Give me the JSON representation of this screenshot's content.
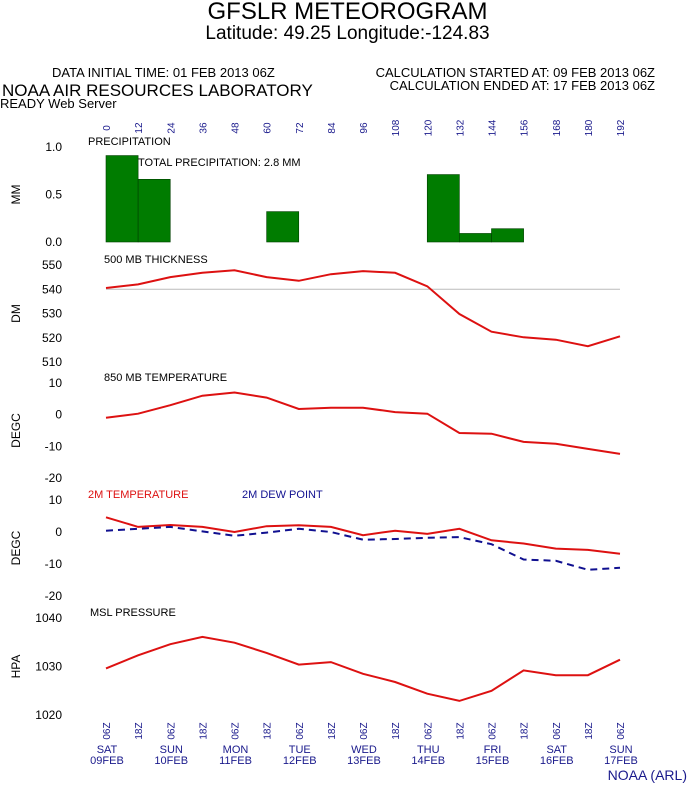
{
  "header": {
    "title": "GFSLR METEOROGRAM",
    "subtitle": "Latitude: 49.25 Longitude:-124.83",
    "data_initial_time": "DATA INITIAL TIME: 01 FEB 2013 06Z",
    "calc_started": "CALCULATION STARTED AT: 09 FEB 2013 06Z",
    "calc_ended": "CALCULATION ENDED AT: 17 FEB 2013 06Z",
    "lab": "NOAA AIR RESOURCES LABORATORY",
    "server": "READY Web Server"
  },
  "credit": "NOAA (ARL)",
  "colors": {
    "series": "#dd1111",
    "dew": "#101090",
    "bar": "#007c00",
    "axis_text": "#1a1a8c"
  },
  "chart_data": [
    {
      "type": "bar",
      "title": "PRECIPITATION",
      "annotation": "TOTAL PRECIPITATION:   2.8 MM",
      "ylabel": "MM",
      "ylim": [
        0,
        1
      ],
      "yticks": [
        "0.0",
        "0.5",
        "1.0"
      ],
      "top_axis_ticks": [
        "0",
        "12",
        "24",
        "36",
        "48",
        "60",
        "72",
        "84",
        "96",
        "108",
        "120",
        "132",
        "144",
        "156",
        "168",
        "180",
        "192"
      ],
      "x": [
        6,
        18,
        30,
        42,
        54,
        66,
        78,
        90,
        102,
        114,
        126,
        138,
        150,
        162,
        174,
        186
      ],
      "values": [
        0.91,
        0.66,
        0,
        0,
        0,
        0.32,
        0,
        0,
        0,
        0,
        0.71,
        0.09,
        0.14,
        0,
        0,
        0
      ]
    },
    {
      "type": "line",
      "title": "500 MB  THICKNESS",
      "ylabel": "DM",
      "ylim": [
        510,
        550
      ],
      "yticks": [
        "510",
        "520",
        "530",
        "540",
        "550"
      ],
      "x": [
        0,
        12,
        24,
        36,
        48,
        60,
        72,
        84,
        96,
        108,
        120,
        132,
        144,
        156,
        168,
        180,
        192
      ],
      "series": [
        {
          "values": [
            540.5,
            542.0,
            545.0,
            546.8,
            547.8,
            545.0,
            543.5,
            546.2,
            547.5,
            546.8,
            541.2,
            529.8,
            522.5,
            520.2,
            519.2,
            516.5,
            520.6
          ]
        }
      ]
    },
    {
      "type": "line",
      "title": "850 MB  TEMPERATURE",
      "ylabel": "DEGC",
      "ylim": [
        -20,
        10
      ],
      "yticks": [
        "-20",
        "-10",
        "0",
        "10"
      ],
      "x": [
        0,
        12,
        24,
        36,
        48,
        60,
        72,
        84,
        96,
        108,
        120,
        132,
        144,
        156,
        168,
        180,
        192
      ],
      "series": [
        {
          "values": [
            -1.0,
            0.3,
            3.0,
            6.0,
            7.0,
            5.4,
            1.8,
            2.2,
            2.2,
            0.8,
            0.3,
            -5.8,
            -6.0,
            -8.6,
            -9.2,
            -10.8,
            -12.4
          ]
        }
      ]
    },
    {
      "type": "line",
      "legend": [
        "2M TEMPERATURE",
        "2M  DEW POINT"
      ],
      "ylabel": "DEGC",
      "ylim": [
        -20,
        10
      ],
      "yticks": [
        "-20",
        "-10",
        "0",
        "10"
      ],
      "x": [
        0,
        12,
        24,
        36,
        48,
        60,
        72,
        84,
        96,
        108,
        120,
        132,
        144,
        156,
        168,
        180,
        192
      ],
      "series": [
        {
          "name": "2M TEMPERATURE",
          "values": [
            4.6,
            1.6,
            2.2,
            1.6,
            0.0,
            1.8,
            2.1,
            1.6,
            -1.0,
            0.4,
            -0.6,
            1.0,
            -2.6,
            -3.6,
            -5.2,
            -5.6,
            -6.8
          ]
        },
        {
          "name": "2M  DEW POINT",
          "values": [
            0.4,
            1.0,
            1.6,
            0.2,
            -1.2,
            -0.2,
            1.0,
            0.0,
            -2.4,
            -2.2,
            -1.8,
            -1.6,
            -3.8,
            -8.6,
            -9.0,
            -11.8,
            -11.2
          ]
        }
      ]
    },
    {
      "type": "line",
      "title": "MSL PRESSURE",
      "ylabel": "HPA",
      "ylim": [
        1020,
        1040
      ],
      "yticks": [
        "1020",
        "1030",
        "1040"
      ],
      "x": [
        0,
        12,
        24,
        36,
        48,
        60,
        72,
        84,
        96,
        108,
        120,
        132,
        144,
        156,
        168,
        180,
        192
      ],
      "series": [
        {
          "values": [
            1029.6,
            1032.3,
            1034.6,
            1036.1,
            1034.9,
            1032.8,
            1030.4,
            1030.9,
            1028.5,
            1026.8,
            1024.4,
            1022.9,
            1025.0,
            1029.2,
            1028.2,
            1028.2,
            1031.4
          ]
        }
      ],
      "bottom_axis_ticks": [
        "06Z",
        "18Z",
        "06Z",
        "18Z",
        "06Z",
        "18Z",
        "06Z",
        "18Z",
        "06Z",
        "18Z",
        "06Z",
        "18Z",
        "06Z",
        "18Z",
        "06Z",
        "18Z",
        "06Z"
      ],
      "day_labels": [
        [
          "SAT",
          "09FEB"
        ],
        [
          "SUN",
          "10FEB"
        ],
        [
          "MON",
          "11FEB"
        ],
        [
          "TUE",
          "12FEB"
        ],
        [
          "WED",
          "13FEB"
        ],
        [
          "THU",
          "14FEB"
        ],
        [
          "FRI",
          "15FEB"
        ],
        [
          "SAT",
          "16FEB"
        ],
        [
          "SUN",
          "17FEB"
        ]
      ]
    }
  ]
}
